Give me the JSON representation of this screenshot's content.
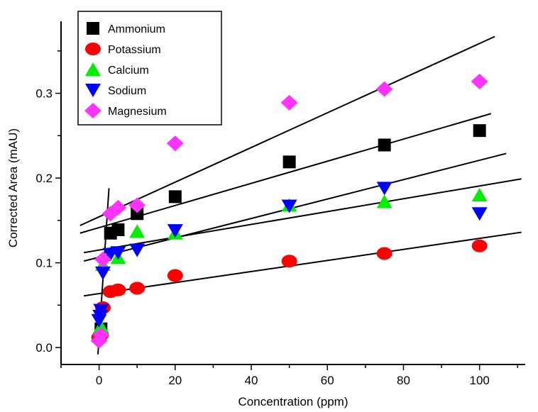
{
  "chart_data": {
    "type": "scatter",
    "xlabel": "Concentration (ppm)",
    "ylabel": "Corrected Area (mAU)",
    "xlim": [
      -10,
      112
    ],
    "ylim": [
      -0.02,
      0.385
    ],
    "x_ticks": [
      0,
      20,
      40,
      60,
      80,
      100
    ],
    "y_ticks": [
      0.0,
      0.1,
      0.2,
      0.3
    ],
    "x_tick_labels": [
      "0",
      "20",
      "40",
      "60",
      "80",
      "100"
    ],
    "y_tick_labels": [
      "0.0",
      "0.1",
      "0.2",
      "0.3"
    ],
    "grid": false,
    "legend": {
      "position": "top-left"
    },
    "series": [
      {
        "name": "Ammonium",
        "marker": "square",
        "color": "#000000",
        "x": [
          0.5,
          3,
          5,
          10,
          20,
          50,
          75,
          100
        ],
        "y": [
          0.022,
          0.135,
          0.139,
          0.158,
          0.178,
          0.219,
          0.239,
          0.256
        ],
        "fit": {
          "x": [
            -5,
            103
          ],
          "y": [
            0.135,
            0.276
          ]
        }
      },
      {
        "name": "Potassium",
        "marker": "circle",
        "color": "#ff0000",
        "x": [
          0,
          0.5,
          1,
          3,
          5,
          10,
          20,
          50,
          75,
          100
        ],
        "y": [
          0.012,
          0.015,
          0.047,
          0.066,
          0.068,
          0.07,
          0.085,
          0.102,
          0.111,
          0.12
        ],
        "fit": {
          "x": [
            -4,
            111
          ],
          "y": [
            0.061,
            0.136
          ]
        }
      },
      {
        "name": "Calcium",
        "marker": "triangle-up",
        "color": "#00ee00",
        "x": [
          0.5,
          1,
          5,
          10,
          20,
          50,
          75,
          100
        ],
        "y": [
          0.025,
          0.098,
          0.106,
          0.137,
          0.135,
          0.168,
          0.172,
          0.18
        ],
        "fit": {
          "x": [
            -4,
            111
          ],
          "y": [
            0.112,
            0.199
          ]
        }
      },
      {
        "name": "Sodium",
        "marker": "triangle-down",
        "color": "#0000ff",
        "x": [
          0,
          0.3,
          0.5,
          1,
          3,
          5,
          10,
          20,
          50,
          75,
          100
        ],
        "y": [
          0.032,
          0.037,
          0.044,
          0.088,
          0.11,
          0.112,
          0.115,
          0.138,
          0.167,
          0.188,
          0.158
        ],
        "fit": {
          "x": [
            -4,
            107
          ],
          "y": [
            0.102,
            0.229
          ]
        }
      },
      {
        "name": "Magnesium",
        "marker": "diamond",
        "color": "#ff33ff",
        "x": [
          0,
          0.5,
          1,
          3,
          5,
          10,
          20,
          50,
          75,
          100
        ],
        "y": [
          0.008,
          0.015,
          0.104,
          0.158,
          0.165,
          0.168,
          0.241,
          0.289,
          0.305,
          0.314
        ],
        "fit": {
          "x": [
            -5,
            104
          ],
          "y": [
            0.144,
            0.367
          ]
        }
      }
    ],
    "extra_lines": [
      {
        "x": [
          -0.3,
          2.6
        ],
        "y": [
          -0.008,
          0.188
        ]
      }
    ]
  }
}
